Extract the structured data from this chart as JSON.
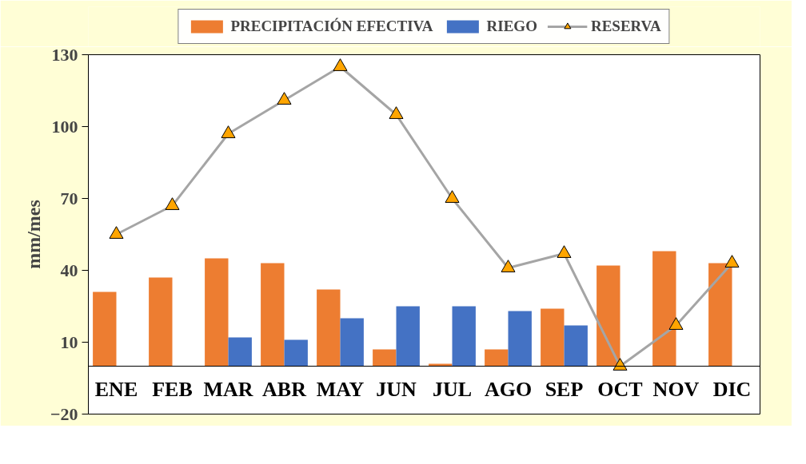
{
  "chart_data": {
    "type": "bar",
    "ylabel": "mm/mes",
    "categories": [
      "ENE",
      "FEB",
      "MAR",
      "ABR",
      "MAY",
      "JUN",
      "JUL",
      "AGO",
      "SEP",
      "OCT",
      "NOV",
      "DIC"
    ],
    "series": [
      {
        "name": "PRECIPITACIÓN EFECTIVA",
        "color": "#ed7d31",
        "values": [
          31,
          37,
          45,
          43,
          32,
          7,
          1,
          7,
          24,
          42,
          48,
          43
        ]
      },
      {
        "name": "RIEGO",
        "color": "#4472c4",
        "values": [
          0,
          0,
          12,
          11,
          20,
          25,
          25,
          23,
          17,
          0,
          0,
          0
        ]
      },
      {
        "name": "RESERVA",
        "type": "line",
        "color": "#a5a5a5",
        "marker": "triangle",
        "colors": [
          "#ffa500",
          "#ffa500",
          "#ffa500",
          "#ffa500",
          "#ffa500",
          "#ffa500",
          "#ffa500",
          "#ffa500",
          "#ffa500",
          "#ffa500",
          "#ffa500",
          "#ffa500"
        ],
        "values": [
          55,
          67,
          97,
          111,
          125,
          105,
          70,
          41,
          47,
          0,
          17,
          43
        ]
      }
    ],
    "ylim": [
      -20,
      130
    ],
    "yticks": [
      -20,
      10,
      40,
      70,
      100,
      130
    ],
    "grid": false,
    "legend": "top"
  }
}
